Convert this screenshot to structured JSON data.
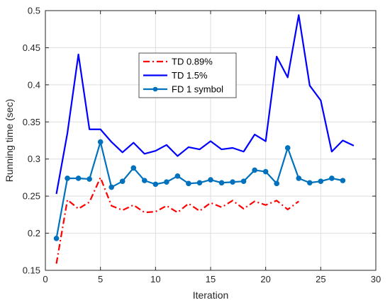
{
  "chart_data": {
    "type": "line",
    "title": "",
    "xlabel": "Iteration",
    "ylabel": "Running time (sec)",
    "xlim": [
      0,
      30
    ],
    "ylim": [
      0.15,
      0.5
    ],
    "xticks": [
      0,
      5,
      10,
      15,
      20,
      25,
      30
    ],
    "yticks": [
      0.15,
      0.2,
      0.25,
      0.3,
      0.35,
      0.4,
      0.45,
      0.5
    ],
    "xtick_labels": [
      "0",
      "5",
      "10",
      "15",
      "20",
      "25",
      "30"
    ],
    "ytick_labels": [
      "0.15",
      "0.2",
      "0.25",
      "0.3",
      "0.35",
      "0.4",
      "0.45",
      "0.5"
    ],
    "grid": true,
    "legend_position": "upper-center",
    "series": [
      {
        "name": "TD 0.89%",
        "color": "#ff0000",
        "style": "dash-dot",
        "marker": "none",
        "x": [
          1,
          2,
          3,
          4,
          5,
          6,
          7,
          8,
          9,
          10,
          11,
          12,
          13,
          14,
          15,
          16,
          17,
          18,
          19,
          20,
          21,
          22,
          23
        ],
        "values": [
          0.159,
          0.245,
          0.233,
          0.242,
          0.275,
          0.237,
          0.231,
          0.238,
          0.228,
          0.229,
          0.237,
          0.228,
          0.24,
          0.23,
          0.241,
          0.235,
          0.244,
          0.233,
          0.243,
          0.238,
          0.244,
          0.232,
          0.243
        ]
      },
      {
        "name": "TD 1.5%",
        "color": "#0000ff",
        "style": "solid",
        "marker": "none",
        "x": [
          1,
          2,
          3,
          4,
          5,
          6,
          7,
          8,
          9,
          10,
          11,
          12,
          13,
          14,
          15,
          16,
          17,
          18,
          19,
          20,
          21,
          22,
          23,
          24,
          25,
          26,
          27,
          28
        ],
        "values": [
          0.253,
          0.335,
          0.441,
          0.34,
          0.34,
          0.323,
          0.309,
          0.322,
          0.307,
          0.311,
          0.319,
          0.304,
          0.316,
          0.313,
          0.324,
          0.313,
          0.315,
          0.31,
          0.333,
          0.324,
          0.438,
          0.41,
          0.494,
          0.399,
          0.379,
          0.31,
          0.325,
          0.318
        ]
      },
      {
        "name": "FD 1 symbol",
        "color": "#0072bd",
        "style": "solid",
        "marker": "circle",
        "x": [
          1,
          2,
          3,
          4,
          5,
          6,
          7,
          8,
          9,
          10,
          11,
          12,
          13,
          14,
          15,
          16,
          17,
          18,
          19,
          20,
          21,
          22,
          23,
          24,
          25,
          26,
          27
        ],
        "values": [
          0.193,
          0.274,
          0.274,
          0.273,
          0.323,
          0.262,
          0.27,
          0.288,
          0.271,
          0.266,
          0.269,
          0.277,
          0.267,
          0.268,
          0.272,
          0.268,
          0.269,
          0.27,
          0.285,
          0.283,
          0.267,
          0.315,
          0.274,
          0.268,
          0.27,
          0.274,
          0.271
        ]
      }
    ]
  }
}
